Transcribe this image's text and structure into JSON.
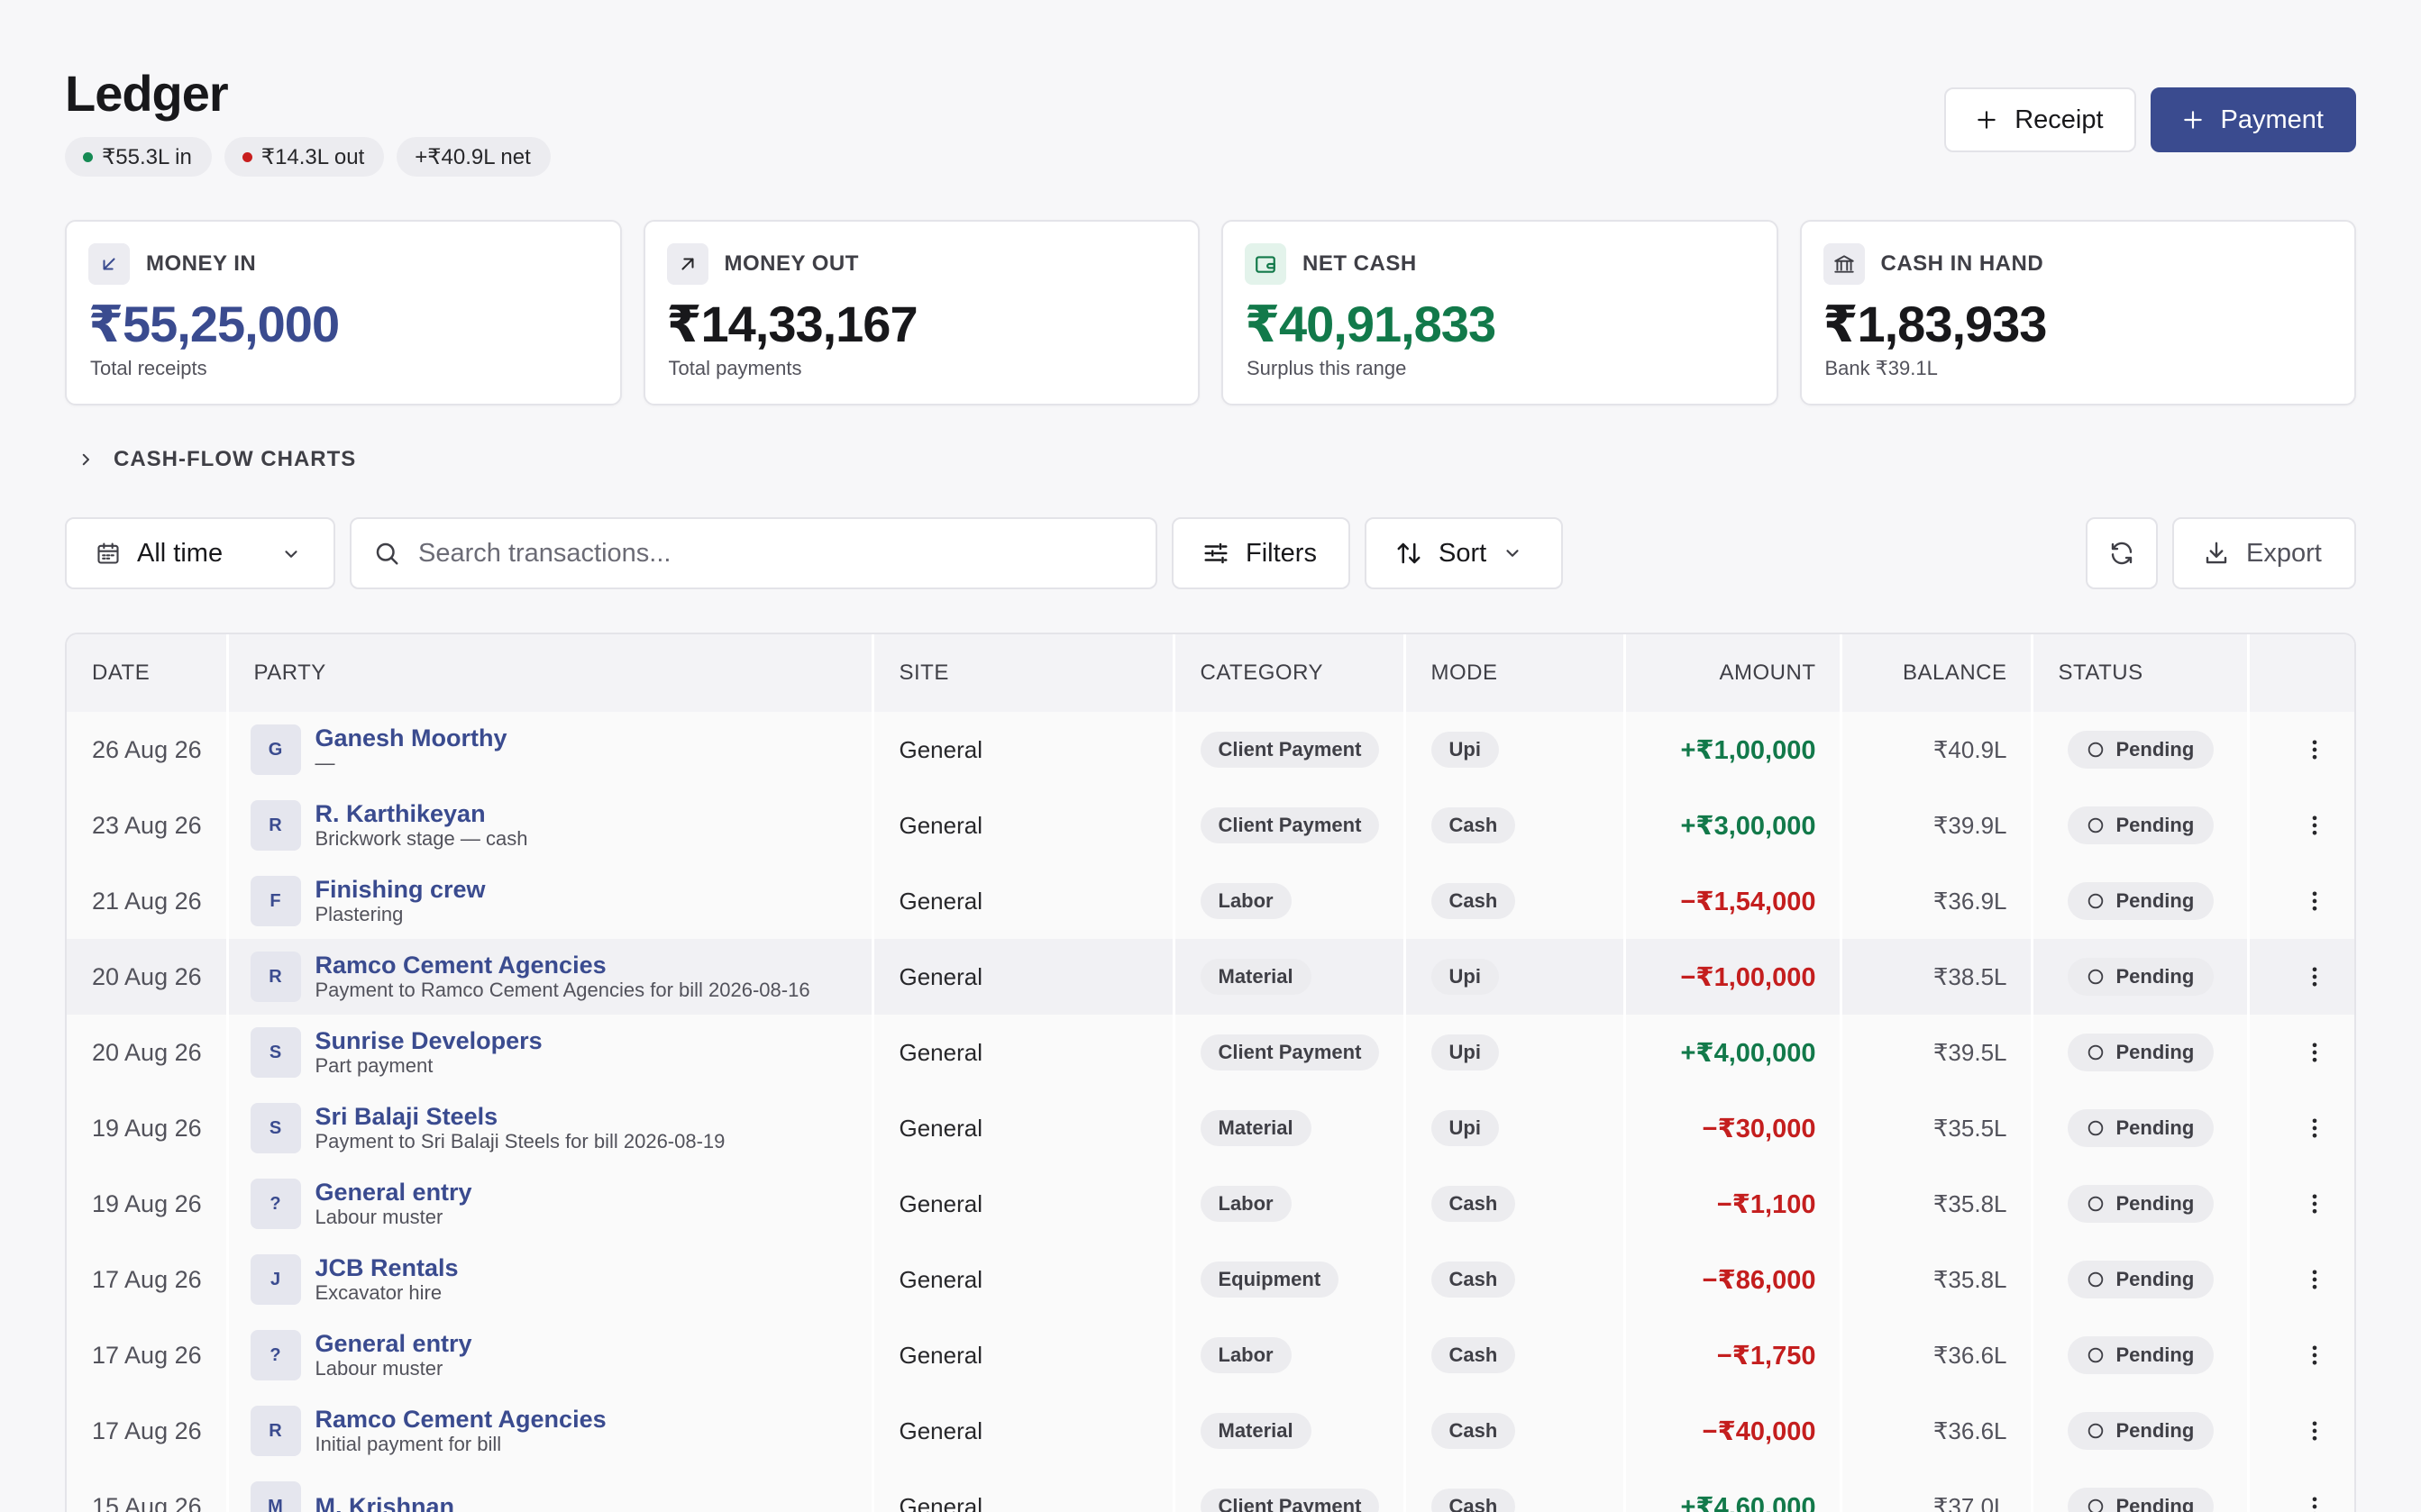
{
  "header": {
    "title": "Ledger",
    "chips": [
      {
        "text": "₹55.3L in",
        "dot": "green"
      },
      {
        "text": "₹14.3L out",
        "dot": "red"
      },
      {
        "text": "+₹40.9L net",
        "dot": null
      }
    ],
    "receipt_label": "Receipt",
    "payment_label": "Payment"
  },
  "cards": [
    {
      "label": "MONEY IN",
      "value": "₹55,25,000",
      "sub": "Total receipts",
      "icon": "arrow-down-left-icon",
      "tone": "blue"
    },
    {
      "label": "MONEY OUT",
      "value": "₹14,33,167",
      "sub": "Total payments",
      "icon": "arrow-up-right-icon",
      "tone": "dark"
    },
    {
      "label": "NET CASH",
      "value": "₹40,91,833",
      "sub": "Surplus this range",
      "icon": "wallet-icon",
      "tone": "green"
    },
    {
      "label": "CASH IN HAND",
      "value": "₹1,83,933",
      "sub": "Bank ₹39.1L",
      "icon": "bank-icon",
      "tone": "dark"
    }
  ],
  "charts_toggle": {
    "label": "CASH-FLOW CHARTS"
  },
  "toolbar": {
    "range_label": "All time",
    "search_placeholder": "Search transactions...",
    "filters_label": "Filters",
    "sort_label": "Sort",
    "export_label": "Export"
  },
  "table": {
    "columns": [
      "DATE",
      "PARTY",
      "SITE",
      "CATEGORY",
      "MODE",
      "AMOUNT",
      "BALANCE",
      "STATUS",
      ""
    ],
    "rows": [
      {
        "date": "26 Aug 26",
        "initial": "G",
        "party": "Ganesh Moorthy",
        "note": "—",
        "site": "General",
        "category": "Client Payment",
        "mode": "Upi",
        "amount": "+₹1,00,000",
        "direction": "in",
        "balance": "₹40.9L",
        "status": "Pending"
      },
      {
        "date": "23 Aug 26",
        "initial": "R",
        "party": "R. Karthikeyan",
        "note": "Brickwork stage — cash",
        "site": "General",
        "category": "Client Payment",
        "mode": "Cash",
        "amount": "+₹3,00,000",
        "direction": "in",
        "balance": "₹39.9L",
        "status": "Pending"
      },
      {
        "date": "21 Aug 26",
        "initial": "F",
        "party": "Finishing crew",
        "note": "Plastering",
        "site": "General",
        "category": "Labor",
        "mode": "Cash",
        "amount": "−₹1,54,000",
        "direction": "out",
        "balance": "₹36.9L",
        "status": "Pending"
      },
      {
        "date": "20 Aug 26",
        "initial": "R",
        "party": "Ramco Cement Agencies",
        "note": "Payment to Ramco Cement Agencies for bill 2026-08-16",
        "site": "General",
        "category": "Material",
        "mode": "Upi",
        "amount": "−₹1,00,000",
        "direction": "out",
        "balance": "₹38.5L",
        "status": "Pending",
        "highlight": true
      },
      {
        "date": "20 Aug 26",
        "initial": "S",
        "party": "Sunrise Developers",
        "note": "Part payment",
        "site": "General",
        "category": "Client Payment",
        "mode": "Upi",
        "amount": "+₹4,00,000",
        "direction": "in",
        "balance": "₹39.5L",
        "status": "Pending"
      },
      {
        "date": "19 Aug 26",
        "initial": "S",
        "party": "Sri Balaji Steels",
        "note": "Payment to Sri Balaji Steels for bill 2026-08-19",
        "site": "General",
        "category": "Material",
        "mode": "Upi",
        "amount": "−₹30,000",
        "direction": "out",
        "balance": "₹35.5L",
        "status": "Pending"
      },
      {
        "date": "19 Aug 26",
        "initial": "?",
        "party": "General entry",
        "note": "Labour muster",
        "site": "General",
        "category": "Labor",
        "mode": "Cash",
        "amount": "−₹1,100",
        "direction": "out",
        "balance": "₹35.8L",
        "status": "Pending"
      },
      {
        "date": "17 Aug 26",
        "initial": "J",
        "party": "JCB Rentals",
        "note": "Excavator hire",
        "site": "General",
        "category": "Equipment",
        "mode": "Cash",
        "amount": "−₹86,000",
        "direction": "out",
        "balance": "₹35.8L",
        "status": "Pending"
      },
      {
        "date": "17 Aug 26",
        "initial": "?",
        "party": "General entry",
        "note": "Labour muster",
        "site": "General",
        "category": "Labor",
        "mode": "Cash",
        "amount": "−₹1,750",
        "direction": "out",
        "balance": "₹36.6L",
        "status": "Pending"
      },
      {
        "date": "17 Aug 26",
        "initial": "R",
        "party": "Ramco Cement Agencies",
        "note": "Initial payment for bill",
        "site": "General",
        "category": "Material",
        "mode": "Cash",
        "amount": "−₹40,000",
        "direction": "out",
        "balance": "₹36.6L",
        "status": "Pending"
      },
      {
        "date": "15 Aug 26",
        "initial": "M",
        "party": "M. Krishnan",
        "note": "",
        "site": "General",
        "category": "Client Payment",
        "mode": "Cash",
        "amount": "+₹4,60,000",
        "direction": "in",
        "balance": "₹37.0L",
        "status": "Pending"
      }
    ]
  }
}
